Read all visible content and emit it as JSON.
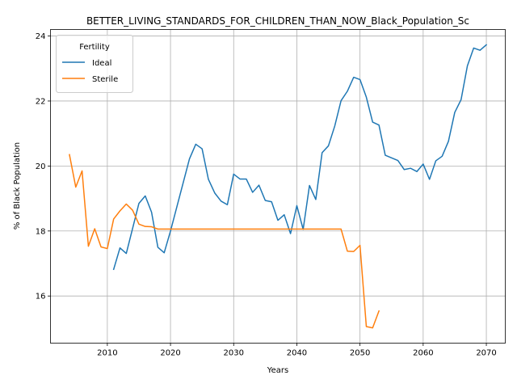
{
  "chart_data": {
    "type": "line",
    "title": "BETTER_LIVING_STANDARDS_FOR_CHILDREN_THAN_NOW_Black_Population_Sc",
    "xlabel": "Years",
    "ylabel": "% of Black Population",
    "xlim": [
      2001,
      2073
    ],
    "ylim": [
      14.55,
      24.2
    ],
    "x_ticks": [
      2010,
      2020,
      2030,
      2040,
      2050,
      2060,
      2070
    ],
    "y_ticks": [
      16,
      18,
      20,
      22,
      24
    ],
    "grid": true,
    "legend": {
      "title": "Fertility",
      "placement": "top-left"
    },
    "series": [
      {
        "name": "Ideal",
        "color": "#1f77b4",
        "x": [
          2011,
          2012,
          2013,
          2014,
          2015,
          2016,
          2017,
          2018,
          2019,
          2020,
          2021,
          2022,
          2023,
          2024,
          2025,
          2026,
          2027,
          2028,
          2029,
          2030,
          2031,
          2032,
          2033,
          2034,
          2035,
          2036,
          2037,
          2038,
          2039,
          2040,
          2041,
          2042,
          2043,
          2044,
          2045,
          2046,
          2047,
          2048,
          2049,
          2050,
          2051,
          2052,
          2053,
          2054,
          2055,
          2056,
          2057,
          2058,
          2059,
          2060,
          2061,
          2062,
          2063,
          2064,
          2065,
          2066,
          2067,
          2068,
          2069,
          2070
        ],
        "y": [
          16.82,
          17.48,
          17.31,
          18.08,
          18.85,
          19.08,
          18.58,
          17.5,
          17.33,
          18.0,
          18.74,
          19.48,
          20.22,
          20.67,
          20.53,
          19.59,
          19.17,
          18.92,
          18.81,
          19.75,
          19.6,
          19.6,
          19.19,
          19.41,
          18.94,
          18.9,
          18.33,
          18.5,
          17.92,
          18.78,
          18.05,
          19.4,
          18.97,
          20.41,
          20.62,
          21.23,
          22.01,
          22.3,
          22.73,
          22.66,
          22.12,
          21.35,
          21.26,
          20.33,
          20.25,
          20.17,
          19.89,
          19.93,
          19.83,
          20.06,
          19.59,
          20.16,
          20.3,
          20.76,
          21.65,
          22.04,
          23.08,
          23.63,
          23.56,
          23.73
        ]
      },
      {
        "name": "Sterile",
        "color": "#ff7f0e",
        "x": [
          2004,
          2005,
          2006,
          2007,
          2008,
          2009,
          2010,
          2011,
          2012,
          2013,
          2014,
          2015,
          2016,
          2017,
          2018,
          2019,
          2020,
          2025,
          2030,
          2035,
          2040,
          2045,
          2047,
          2048,
          2049,
          2050,
          2051,
          2052,
          2053
        ],
        "y": [
          20.35,
          19.35,
          19.85,
          17.53,
          18.07,
          17.51,
          17.46,
          18.37,
          18.62,
          18.83,
          18.64,
          18.21,
          18.14,
          18.13,
          18.06,
          18.06,
          18.06,
          18.06,
          18.06,
          18.06,
          18.06,
          18.06,
          18.06,
          17.38,
          17.37,
          17.56,
          15.06,
          15.02,
          15.54
        ]
      }
    ]
  }
}
